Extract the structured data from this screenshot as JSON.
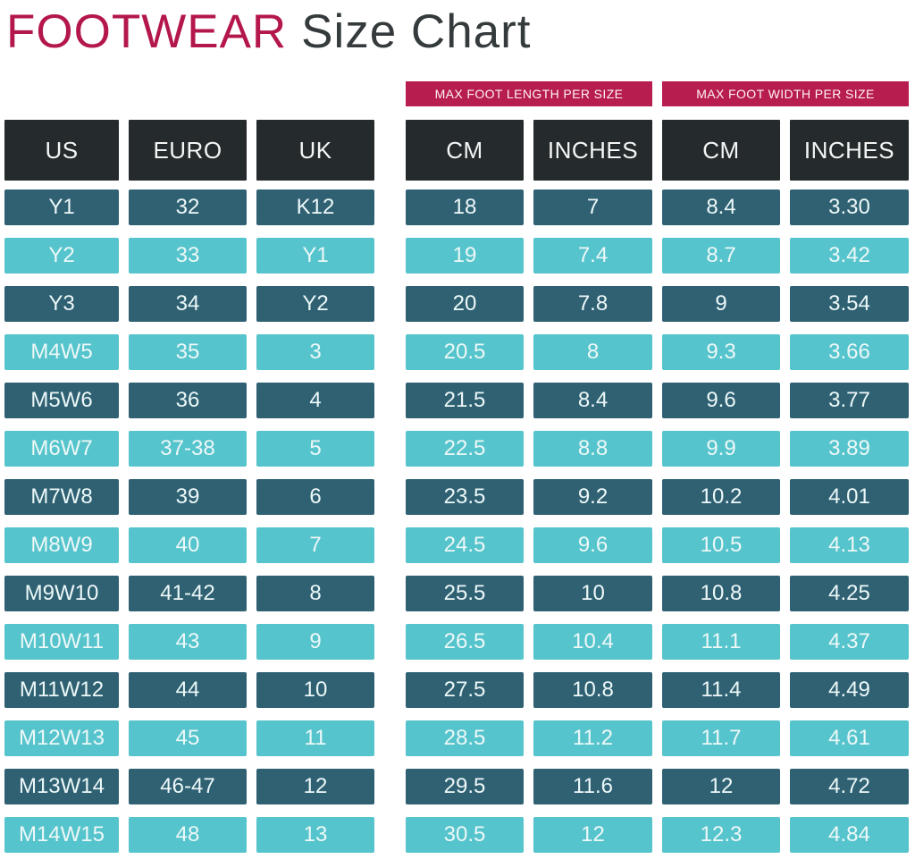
{
  "colors": {
    "accent_crimson": "#B81D4F",
    "title_crimson": "#B4174C",
    "title_dark": "#353B3C",
    "header_black": "#252B2C",
    "row_dark_teal": "#2F6173",
    "row_light_teal": "#56C4CC",
    "cell_text": "#EDF8F8",
    "background": "#FFFFFF"
  },
  "chart_data": {
    "type": "table",
    "title": {
      "accent": "FOOTWEAR",
      "rest": "Size Chart"
    },
    "group_headers": [
      "MAX FOOT LENGTH PER SIZE",
      "MAX FOOT WIDTH PER SIZE"
    ],
    "columns": [
      "US",
      "EURO",
      "UK",
      "CM",
      "INCHES",
      "CM",
      "INCHES"
    ],
    "rows": [
      {
        "us": "Y1",
        "euro": "32",
        "uk": "K12",
        "length_cm": "18",
        "length_in": "7",
        "width_cm": "8.4",
        "width_in": "3.30"
      },
      {
        "us": "Y2",
        "euro": "33",
        "uk": "Y1",
        "length_cm": "19",
        "length_in": "7.4",
        "width_cm": "8.7",
        "width_in": "3.42"
      },
      {
        "us": "Y3",
        "euro": "34",
        "uk": "Y2",
        "length_cm": "20",
        "length_in": "7.8",
        "width_cm": "9",
        "width_in": "3.54"
      },
      {
        "us": "M4W5",
        "euro": "35",
        "uk": "3",
        "length_cm": "20.5",
        "length_in": "8",
        "width_cm": "9.3",
        "width_in": "3.66"
      },
      {
        "us": "M5W6",
        "euro": "36",
        "uk": "4",
        "length_cm": "21.5",
        "length_in": "8.4",
        "width_cm": "9.6",
        "width_in": "3.77"
      },
      {
        "us": "M6W7",
        "euro": "37-38",
        "uk": "5",
        "length_cm": "22.5",
        "length_in": "8.8",
        "width_cm": "9.9",
        "width_in": "3.89"
      },
      {
        "us": "M7W8",
        "euro": "39",
        "uk": "6",
        "length_cm": "23.5",
        "length_in": "9.2",
        "width_cm": "10.2",
        "width_in": "4.01"
      },
      {
        "us": "M8W9",
        "euro": "40",
        "uk": "7",
        "length_cm": "24.5",
        "length_in": "9.6",
        "width_cm": "10.5",
        "width_in": "4.13"
      },
      {
        "us": "M9W10",
        "euro": "41-42",
        "uk": "8",
        "length_cm": "25.5",
        "length_in": "10",
        "width_cm": "10.8",
        "width_in": "4.25"
      },
      {
        "us": "M10W11",
        "euro": "43",
        "uk": "9",
        "length_cm": "26.5",
        "length_in": "10.4",
        "width_cm": "11.1",
        "width_in": "4.37"
      },
      {
        "us": "M11W12",
        "euro": "44",
        "uk": "10",
        "length_cm": "27.5",
        "length_in": "10.8",
        "width_cm": "11.4",
        "width_in": "4.49"
      },
      {
        "us": "M12W13",
        "euro": "45",
        "uk": "11",
        "length_cm": "28.5",
        "length_in": "11.2",
        "width_cm": "11.7",
        "width_in": "4.61"
      },
      {
        "us": "M13W14",
        "euro": "46-47",
        "uk": "12",
        "length_cm": "29.5",
        "length_in": "11.6",
        "width_cm": "12",
        "width_in": "4.72"
      },
      {
        "us": "M14W15",
        "euro": "48",
        "uk": "13",
        "length_cm": "30.5",
        "length_in": "12",
        "width_cm": "12.3",
        "width_in": "4.84"
      }
    ]
  }
}
